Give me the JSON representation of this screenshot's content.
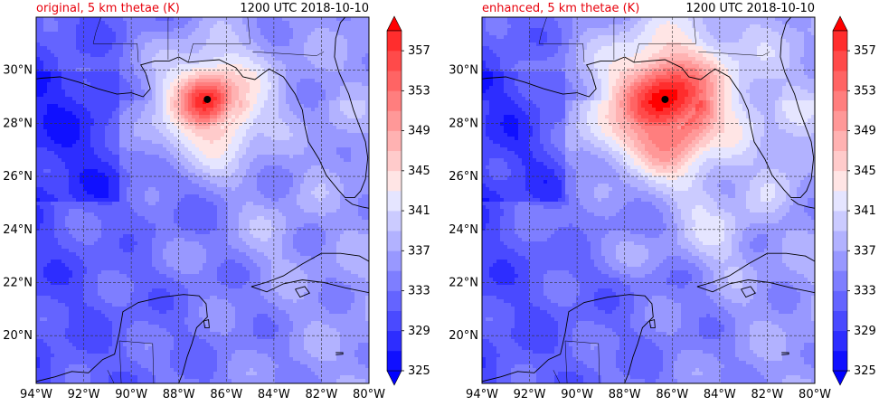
{
  "chart_data": [
    {
      "type": "heatmap",
      "title": "original, 5 km thetae (K)",
      "time_label": "1200 UTC 2018-10-10",
      "xlim": [
        -94,
        -80
      ],
      "ylim": [
        18.2,
        32.0
      ],
      "x_ticks": [
        -94,
        -92,
        -90,
        -88,
        -86,
        -84,
        -82,
        -80
      ],
      "x_tick_labels": [
        "94°W",
        "92°W",
        "90°W",
        "88°W",
        "86°W",
        "84°W",
        "82°W",
        "80°W"
      ],
      "y_ticks": [
        20,
        22,
        24,
        26,
        28,
        30
      ],
      "y_tick_labels": [
        "20°N",
        "22°N",
        "24°N",
        "26°N",
        "28°N",
        "30°N"
      ],
      "grid": true,
      "storm_center": {
        "lon": -86.8,
        "lat": 28.9
      },
      "field": {
        "core_peak": 357,
        "core_radius_deg": 0.9,
        "warm_radius_deg": 2.3,
        "band_strength": 0.55
      },
      "colorbar": {
        "levels": [
          325,
          327,
          329,
          331,
          333,
          335,
          337,
          339,
          341,
          343,
          345,
          347,
          349,
          351,
          353,
          355,
          357,
          359
        ],
        "tick_labels": [
          "325",
          "329",
          "333",
          "337",
          "341",
          "345",
          "349",
          "353",
          "357"
        ],
        "extend": "both"
      }
    },
    {
      "type": "heatmap",
      "title": "enhanced, 5 km thetae (K)",
      "time_label": "1200 UTC 2018-10-10",
      "xlim": [
        -94,
        -80
      ],
      "ylim": [
        18.2,
        32.0
      ],
      "x_ticks": [
        -94,
        -92,
        -90,
        -88,
        -86,
        -84,
        -82,
        -80
      ],
      "x_tick_labels": [
        "94°W",
        "92°W",
        "90°W",
        "88°W",
        "86°W",
        "84°W",
        "82°W",
        "80°W"
      ],
      "y_ticks": [
        20,
        22,
        24,
        26,
        28,
        30
      ],
      "y_tick_labels": [
        "20°N",
        "22°N",
        "24°N",
        "26°N",
        "28°N",
        "30°N"
      ],
      "grid": true,
      "storm_center": {
        "lon": -86.3,
        "lat": 28.9
      },
      "field": {
        "core_peak": 359,
        "core_radius_deg": 1.4,
        "warm_radius_deg": 3.4,
        "band_strength": 0.9
      },
      "colorbar": {
        "levels": [
          325,
          327,
          329,
          331,
          333,
          335,
          337,
          339,
          341,
          343,
          345,
          347,
          349,
          351,
          353,
          355,
          357,
          359
        ],
        "tick_labels": [
          "325",
          "329",
          "333",
          "337",
          "341",
          "345",
          "349",
          "353",
          "357"
        ],
        "extend": "both"
      }
    }
  ],
  "colors": {
    "low_extend": "#0000ff",
    "high_extend": "#ff0000",
    "ramp": [
      "#1010ff",
      "#2d2dff",
      "#4a4aff",
      "#6464ff",
      "#7e7eff",
      "#9898ff",
      "#b2b2ff",
      "#cbcbff",
      "#e5e5ff",
      "#ffe5e5",
      "#ffcbcb",
      "#ffb2b2",
      "#ff9898",
      "#ff7e7e",
      "#ff6464",
      "#ff4a4a",
      "#ff2d2d"
    ],
    "coast": "#000000",
    "grid": "#333333",
    "storm_marker": "#000000"
  }
}
